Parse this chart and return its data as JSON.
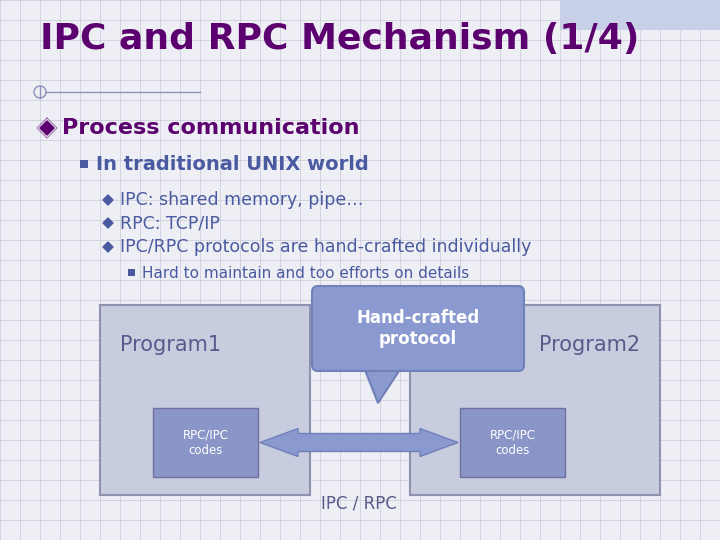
{
  "title": "IPC and RPC Mechanism (1/4)",
  "title_color": "#5B006E",
  "title_fontsize": 26,
  "bg_color": "#EEEEF5",
  "grid_color": "#CACAD8",
  "bullet1": "Process communication",
  "bullet1_color": "#5B006E",
  "bullet1_fontsize": 16,
  "bullet2": "In traditional UNIX world",
  "bullet2_color": "#4A5AA0",
  "bullet2_fontsize": 14,
  "sub1": "IPC: shared memory, pipe…",
  "sub2": "RPC: TCP/IP",
  "sub3": "IPC/RPC protocols are hand-crafted individually",
  "sub_color": "#4A5AA0",
  "sub_fontsize": 12.5,
  "subsub": "Hard to maintain and too efforts on details",
  "subsub_color": "#4A5AA0",
  "subsub_fontsize": 11,
  "box_fill": "#C8CCDF",
  "box_edge": "#9090B0",
  "inner_fill": "#8A95C8",
  "inner_edge": "#7070A0",
  "speech_fill": "#8A9AD0",
  "speech_edge": "#7080B8",
  "arrow_fill": "#8A9AD0",
  "prog1_label": "Program1",
  "prog2_label": "Program2",
  "rpc_label": "RPC/IPC\ncodes",
  "ipc_rpc_label": "IPC / RPC",
  "speech_label": "Hand-crafted\nprotocol",
  "label_color": "#5A5A8A",
  "line_color": "#9090B8",
  "circle_color": "#9090B8"
}
